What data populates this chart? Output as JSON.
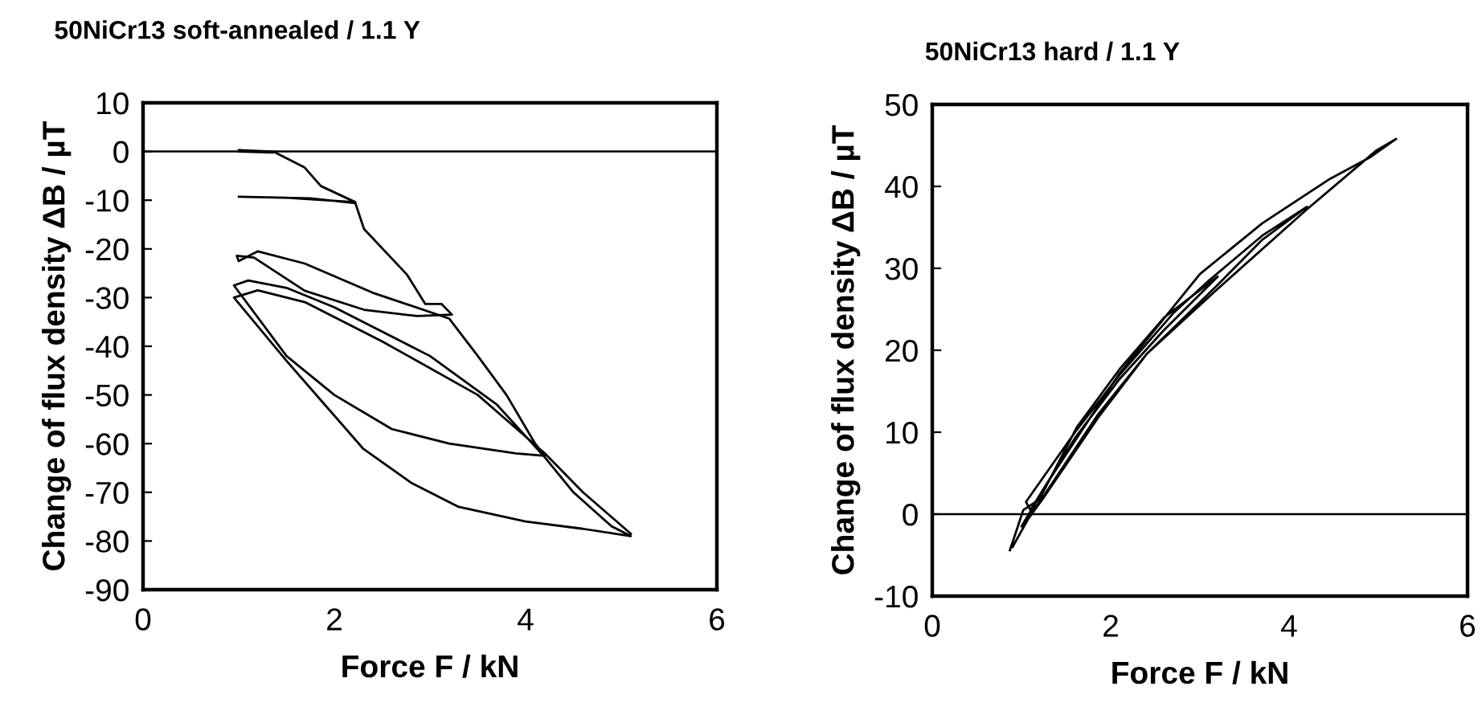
{
  "chart_data": [
    {
      "type": "line",
      "title": "50NiCr13 soft-annealed / 1.1 Y",
      "xlabel": "Force F / kN",
      "ylabel": "Change of flux density ΔB / µT",
      "xlim": [
        0,
        6
      ],
      "xticks": [
        0,
        2,
        4,
        6
      ],
      "ylim": [
        -90,
        10
      ],
      "yticks": [
        -90,
        -80,
        -70,
        -60,
        -50,
        -40,
        -30,
        -20,
        -10,
        0,
        10
      ],
      "grid": false,
      "marker": "none",
      "line_style": "solid",
      "ref_lines": [
        {
          "axis": "y",
          "value": 0,
          "color": "#000000"
        }
      ],
      "series": [
        {
          "color": "#000000",
          "x": [
            1.0,
            1.36,
            1.0,
            1.36,
            1.69,
            1.86,
            2.22,
            1.5,
            1.0,
            1.75,
            2.22,
            2.31,
            2.76,
            2.95,
            3.12,
            3.23,
            2.87,
            2.31,
            1.69,
            1.16,
            0.98,
            1.0,
            1.2,
            1.69,
            2.4,
            3.2,
            3.5,
            3.8,
            4.1,
            4.2,
            3.9,
            3.2,
            2.6,
            2.0,
            1.5,
            0.95,
            1.1,
            1.5,
            2.0,
            3.0,
            3.7,
            4.2,
            4.5,
            4.9,
            5.1,
            4.6,
            4.0,
            3.3,
            2.8,
            2.3,
            1.9,
            1.5,
            0.95,
            1.2,
            1.7,
            2.5,
            3.5,
            4.2,
            4.6,
            5.1
          ],
          "values": [
            0,
            -0.2,
            0.3,
            0,
            -3.3,
            -7.1,
            -10.4,
            -9.5,
            -9.3,
            -9.6,
            -10.6,
            -15.9,
            -25.3,
            -31.3,
            -31.3,
            -33.5,
            -33.8,
            -32.5,
            -28.6,
            -21.8,
            -21.4,
            -22.5,
            -20.5,
            -23,
            -29,
            -34.3,
            -42,
            -50,
            -60,
            -62.5,
            -62,
            -60,
            -57,
            -50,
            -42,
            -27.5,
            -26.5,
            -28,
            -32,
            -42,
            -52,
            -62.8,
            -70,
            -77,
            -79,
            -77.5,
            -76,
            -73,
            -68,
            -61,
            -52,
            -43,
            -30,
            -28.5,
            -31,
            -39,
            -50,
            -62,
            -70,
            -78.5
          ]
        }
      ]
    },
    {
      "type": "line",
      "title": "50NiCr13 hard / 1.1 Y",
      "xlabel": "Force F / kN",
      "ylabel": "Change of flux density ΔB / µT",
      "xlim": [
        0,
        6
      ],
      "xticks": [
        0,
        2,
        4,
        6
      ],
      "ylim": [
        -10,
        50
      ],
      "yticks": [
        -10,
        0,
        10,
        20,
        30,
        40,
        50
      ],
      "grid": false,
      "marker": "none",
      "line_style": "solid",
      "ref_lines": [
        {
          "axis": "y",
          "value": 0,
          "color": "#000000"
        }
      ],
      "series": [
        {
          "color": "#000000",
          "x": [
            0.87,
            1.02,
            1.2,
            1.62,
            2.1,
            2.6,
            3.2,
            2.6,
            2.1,
            1.6,
            1.1,
            1.05,
            1.6,
            2.1,
            2.7,
            3.1,
            3.7,
            4.2,
            3.7,
            3.2,
            2.4,
            1.86,
            1.26,
            1.0,
            1.3,
            2.1,
            3.0,
            3.7,
            4.44,
            4.9,
            5.2,
            4.98,
            4.2,
            3.18,
            2.4,
            1.86,
            1.26,
            1.08,
            0.9
          ],
          "values": [
            -4.4,
            0.5,
            1.8,
            10.6,
            17.7,
            24,
            29,
            22.5,
            16.5,
            9.3,
            0.5,
            1.5,
            10,
            17,
            24.5,
            28.5,
            34,
            37.5,
            33.5,
            28,
            19.5,
            12.2,
            2.4,
            -1.5,
            4,
            17.2,
            29.3,
            35.5,
            40.8,
            43.5,
            45.8,
            44.4,
            37.2,
            27.3,
            19.5,
            11.8,
            2.2,
            -0.5,
            -4
          ]
        }
      ]
    }
  ]
}
